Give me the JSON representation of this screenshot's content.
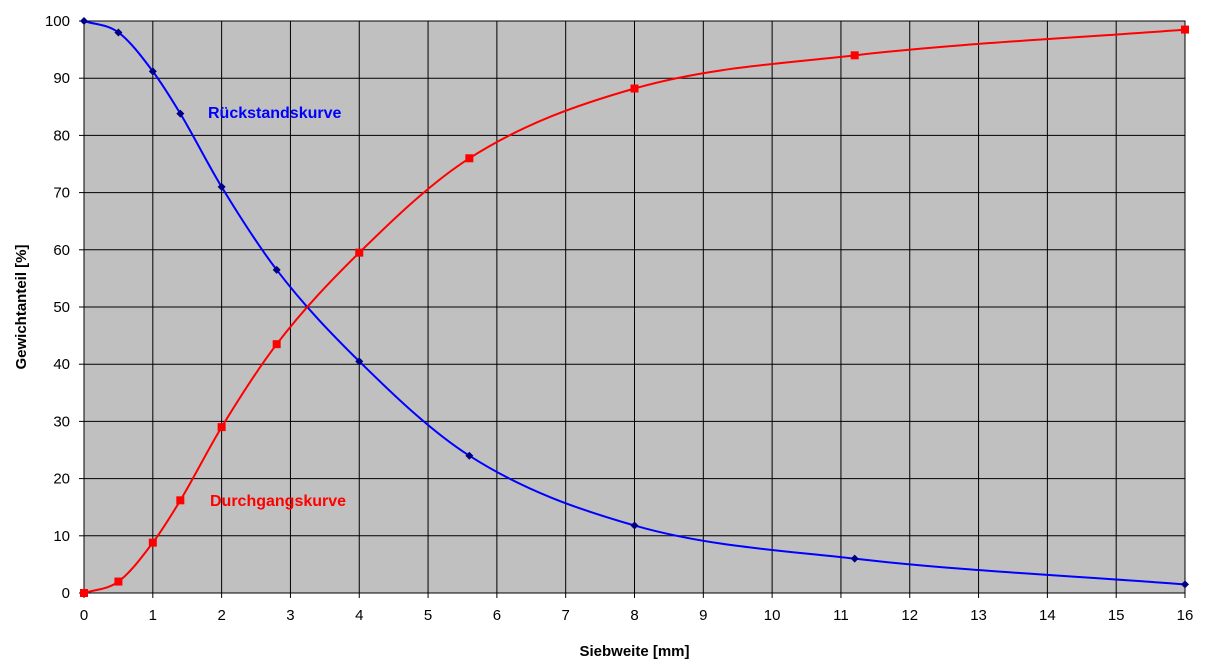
{
  "chart_data": {
    "type": "line",
    "xlabel": "Siebweite [mm]",
    "ylabel": "Gewichtanteil [%]",
    "xlim": [
      0,
      16
    ],
    "ylim": [
      0,
      100
    ],
    "xticks": [
      "0",
      "1",
      "2",
      "3",
      "4",
      "5",
      "6",
      "7",
      "8",
      "9",
      "10",
      "11",
      "12",
      "13",
      "14",
      "15",
      "16"
    ],
    "yticks": [
      "0",
      "10",
      "20",
      "30",
      "40",
      "50",
      "60",
      "70",
      "80",
      "90",
      "100"
    ],
    "grid": true,
    "plot_background": "#c0c0c0",
    "series": [
      {
        "name": "Rückstandskurve",
        "color": "#0000ff",
        "marker": "diamond",
        "x": [
          0,
          0.5,
          1,
          1.4,
          2,
          2.8,
          4,
          5.6,
          8,
          11.2,
          16
        ],
        "y": [
          100,
          98,
          91.2,
          83.8,
          71,
          56.5,
          40.5,
          24,
          11.8,
          6,
          1.5
        ]
      },
      {
        "name": "Durchgangskurve",
        "color": "#ff0000",
        "marker": "square",
        "x": [
          0,
          0.5,
          1,
          1.4,
          2,
          2.8,
          4,
          5.6,
          8,
          11.2,
          16
        ],
        "y": [
          0,
          2,
          8.8,
          16.2,
          29,
          43.5,
          59.5,
          76,
          88.2,
          94,
          98.5
        ]
      }
    ]
  }
}
